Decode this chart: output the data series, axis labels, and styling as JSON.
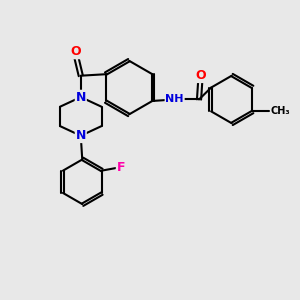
{
  "background_color": "#e8e8e8",
  "bond_color": "#000000",
  "bond_width": 1.5,
  "atom_colors": {
    "O": "#ff0000",
    "N": "#0000dd",
    "F": "#ff00aa",
    "C": "#000000"
  },
  "font_size": 9
}
